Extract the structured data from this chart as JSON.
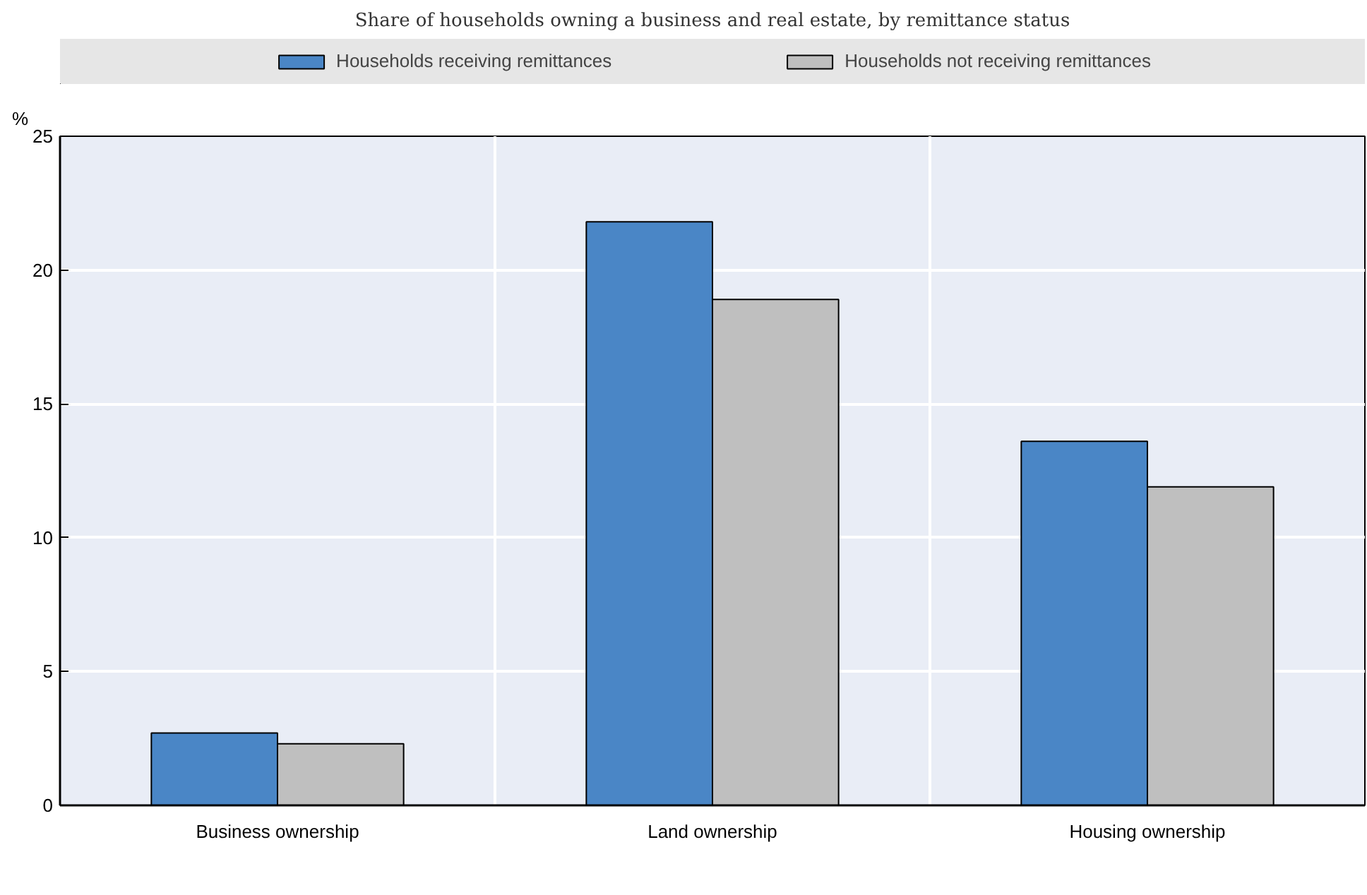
{
  "chart_data": {
    "type": "bar",
    "title": "Share of households owning a business and real estate, by remittance status",
    "ylabel": "%",
    "categories": [
      "Business ownership",
      "Land ownership",
      "Housing ownership"
    ],
    "series": [
      {
        "name": "Households receiving remittances",
        "color": "#4a86c6",
        "values": [
          2.7,
          21.8,
          13.6
        ]
      },
      {
        "name": "Households not receiving remittances",
        "color": "#bfbfbf",
        "values": [
          2.3,
          18.9,
          11.9
        ]
      }
    ],
    "ylim": [
      0,
      25
    ],
    "yticks": [
      0,
      5,
      10,
      15,
      20,
      25
    ],
    "grid": true,
    "legend": "top"
  }
}
